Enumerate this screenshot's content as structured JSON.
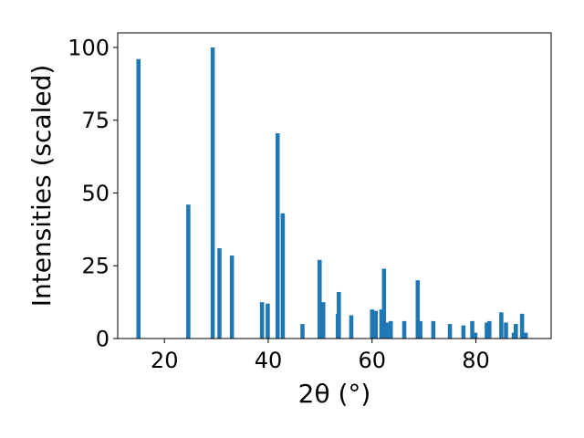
{
  "chart_data": {
    "type": "bar",
    "title": "",
    "xlabel": "2θ (°)",
    "ylabel": "Intensities (scaled)",
    "xlim": [
      11,
      94.5
    ],
    "ylim": [
      0,
      105
    ],
    "x_ticks": [
      20,
      40,
      60,
      80
    ],
    "y_ticks": [
      0,
      25,
      50,
      75,
      100
    ],
    "x_tick_labels": [
      "20",
      "40",
      "60",
      "80"
    ],
    "y_tick_labels": [
      "0",
      "25",
      "50",
      "75",
      "100"
    ],
    "grid": false,
    "legend": "none",
    "bar_width_deg": 0.8,
    "color": "#1f77b4",
    "x": [
      15.0,
      24.6,
      29.3,
      30.6,
      33.0,
      38.8,
      39.9,
      41.8,
      42.8,
      46.6,
      49.9,
      50.6,
      53.4,
      53.6,
      56.0,
      60.0,
      60.7,
      61.8,
      62.3,
      62.8,
      63.6,
      66.2,
      68.8,
      69.3,
      71.8,
      75.0,
      77.6,
      79.3,
      79.9,
      82.1,
      82.6,
      84.9,
      85.8,
      87.3,
      87.7,
      88.9,
      89.6
    ],
    "values": [
      96,
      46,
      100,
      31,
      28.5,
      12.5,
      12,
      70.5,
      43,
      5,
      27,
      12.5,
      8.5,
      16,
      8,
      10,
      9.5,
      10,
      24,
      5.5,
      6,
      6,
      20,
      6,
      6,
      5,
      4.5,
      6,
      2,
      5.5,
      6,
      9,
      5.5,
      2,
      5,
      8.5,
      2
    ]
  }
}
